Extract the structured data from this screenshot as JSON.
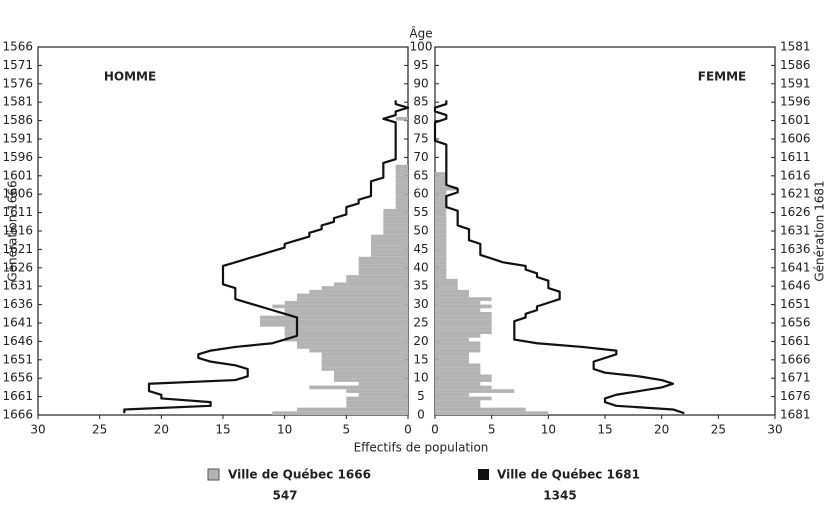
{
  "chart_data": {
    "type": "pyramid",
    "age_label": "Âge",
    "x_label": "Effectifs de population",
    "left_label": "HOMME",
    "right_label": "FEMME",
    "left_axis_label": "Génération 1666",
    "right_axis_label": "Génération 1681",
    "ages": [
      0,
      1,
      2,
      3,
      4,
      5,
      6,
      7,
      8,
      9,
      10,
      11,
      12,
      13,
      14,
      15,
      16,
      17,
      18,
      19,
      20,
      21,
      22,
      23,
      24,
      25,
      26,
      27,
      28,
      29,
      30,
      31,
      32,
      33,
      34,
      35,
      36,
      37,
      38,
      39,
      40,
      41,
      42,
      43,
      44,
      45,
      46,
      47,
      48,
      49,
      50,
      51,
      52,
      53,
      54,
      55,
      56,
      57,
      58,
      59,
      60,
      61,
      62,
      63,
      64,
      65,
      66,
      67,
      68,
      69,
      70,
      71,
      72,
      73,
      74,
      75,
      76,
      77,
      78,
      79,
      80,
      81,
      82,
      83,
      84,
      85
    ],
    "ylim": [
      0,
      100
    ],
    "yticks": [
      0,
      5,
      10,
      15,
      20,
      25,
      30,
      35,
      40,
      45,
      50,
      55,
      60,
      65,
      70,
      75,
      80,
      85,
      90,
      95,
      100
    ],
    "xlim": [
      0,
      30
    ],
    "xticks": [
      0,
      5,
      10,
      15,
      20,
      25,
      30
    ],
    "generation_1666_ticks": [
      1566,
      1571,
      1576,
      1581,
      1586,
      1591,
      1596,
      1601,
      1606,
      1611,
      1616,
      1621,
      1626,
      1631,
      1636,
      1641,
      1646,
      1651,
      1656,
      1661,
      1666
    ],
    "generation_1681_ticks": [
      1581,
      1586,
      1591,
      1596,
      1601,
      1606,
      1611,
      1616,
      1621,
      1626,
      1631,
      1636,
      1641,
      1646,
      1651,
      1656,
      1661,
      1666,
      1671,
      1676,
      1681
    ],
    "series": [
      {
        "name": "Ville de Québec  1666",
        "total": 547,
        "color": "#b3b3b3",
        "style": "bars",
        "homme": [
          11,
          9,
          5,
          5,
          5,
          4,
          5,
          8,
          4,
          6,
          6,
          6,
          7,
          7,
          7,
          7,
          7,
          8,
          9,
          9,
          10,
          10,
          10,
          10,
          12,
          12,
          12,
          10,
          10,
          11,
          10,
          9,
          9,
          8,
          7,
          6,
          5,
          5,
          4,
          4,
          4,
          4,
          4,
          3,
          3,
          3,
          3,
          3,
          3,
          2,
          2,
          2,
          2,
          2,
          2,
          2,
          1,
          1,
          1,
          1,
          1,
          1,
          1,
          1,
          1,
          1,
          1,
          1,
          0,
          0,
          0,
          0,
          0,
          0,
          0,
          0,
          0,
          0,
          0,
          0,
          1,
          0,
          0,
          0,
          0,
          0
        ],
        "femme": [
          10,
          8,
          4,
          4,
          5,
          3,
          7,
          5,
          4,
          5,
          5,
          4,
          4,
          4,
          3,
          3,
          3,
          4,
          4,
          4,
          3,
          4,
          5,
          5,
          5,
          5,
          5,
          5,
          4,
          5,
          4,
          5,
          3,
          3,
          2,
          2,
          2,
          1,
          1,
          1,
          1,
          1,
          1,
          1,
          1,
          1,
          1,
          1,
          1,
          1,
          1,
          1,
          1,
          1,
          1,
          1,
          1,
          1,
          1,
          1,
          1,
          2,
          1,
          1,
          1,
          1,
          0,
          0,
          0,
          0,
          0,
          0,
          0,
          0,
          0,
          0,
          0,
          0,
          0,
          0,
          0,
          0,
          0,
          0,
          0,
          0
        ]
      },
      {
        "name": "Ville de Québec  1681",
        "total": 1345,
        "color": "#111111",
        "style": "line",
        "homme": [
          23,
          23,
          16,
          16,
          20,
          20,
          21,
          21,
          21,
          14,
          13,
          13,
          13,
          14,
          16,
          17,
          17,
          16,
          14,
          11,
          10,
          9,
          9,
          9,
          9,
          9,
          9,
          10,
          11,
          12,
          13,
          14,
          14,
          14,
          14,
          15,
          15,
          15,
          15,
          15,
          15,
          14,
          13,
          12,
          11,
          10,
          10,
          9,
          8,
          8,
          7,
          7,
          6,
          6,
          5,
          5,
          5,
          4,
          4,
          3,
          3,
          3,
          3,
          3,
          2,
          2,
          2,
          2,
          2,
          1,
          1,
          1,
          1,
          1,
          1,
          1,
          1,
          1,
          1,
          1,
          2,
          1,
          1,
          0,
          1,
          1
        ],
        "femme": [
          22,
          21,
          16,
          15,
          15,
          16,
          18,
          20,
          21,
          20,
          18,
          15,
          14,
          14,
          14,
          15,
          16,
          16,
          13,
          9,
          7,
          7,
          7,
          7,
          7,
          7,
          8,
          8,
          9,
          9,
          10,
          11,
          11,
          11,
          10,
          10,
          10,
          9,
          9,
          8,
          8,
          6,
          5,
          4,
          4,
          4,
          4,
          3,
          3,
          3,
          3,
          2,
          2,
          2,
          2,
          2,
          1,
          1,
          1,
          1,
          2,
          2,
          1,
          1,
          1,
          1,
          1,
          1,
          1,
          1,
          1,
          1,
          1,
          1,
          0,
          0,
          0,
          0,
          0,
          0,
          1,
          1,
          0,
          0,
          1,
          1
        ]
      }
    ]
  }
}
